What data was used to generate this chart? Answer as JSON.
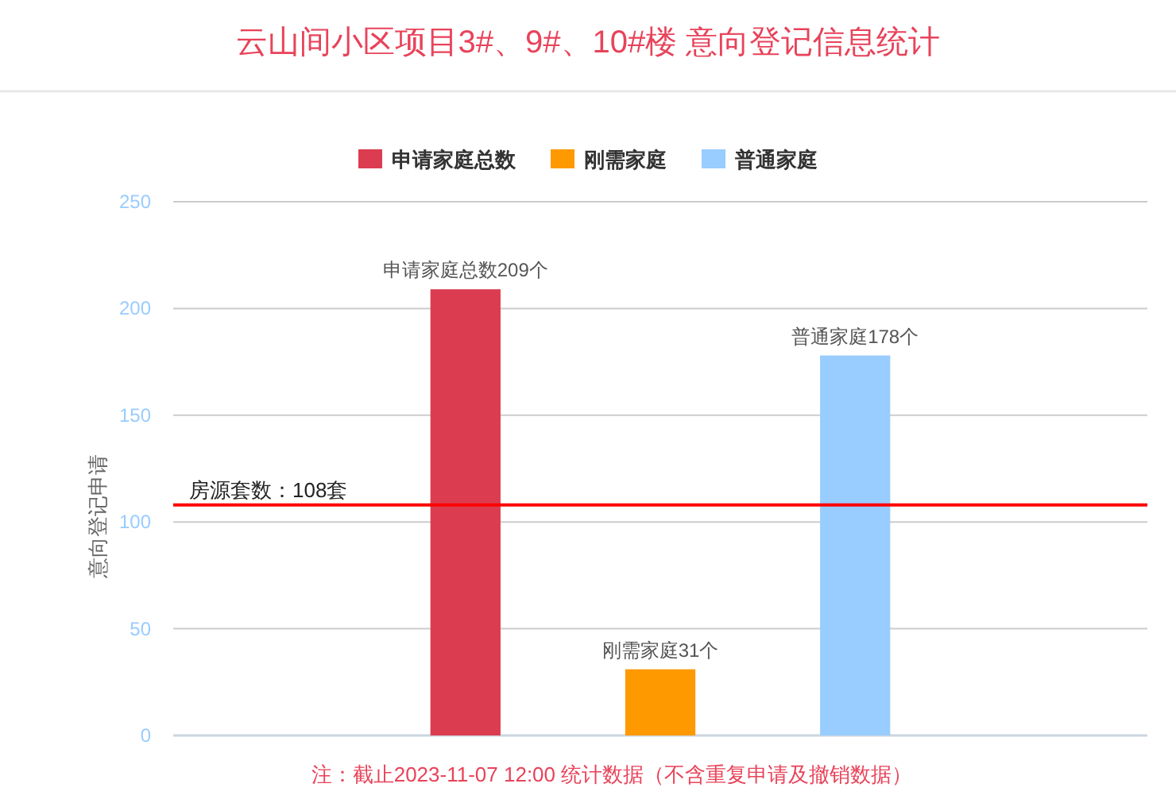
{
  "chart_data": {
    "type": "bar",
    "title": "云山间小区项目3#、9#、10#楼 意向登记信息统计",
    "ylabel": "意向登记申请",
    "categories": [
      null
    ],
    "series": [
      {
        "name": "申请家庭总数",
        "color": "#dc3c50",
        "values": [
          209
        ],
        "value_labels": [
          "申请家庭总数209个"
        ]
      },
      {
        "name": "刚需家庭",
        "color": "#ff9900",
        "values": [
          31
        ],
        "value_labels": [
          "刚需家庭31个"
        ]
      },
      {
        "name": "普通家庭",
        "color": "#99ccff",
        "values": [
          178
        ],
        "value_labels": [
          "普通家庭178个"
        ]
      }
    ],
    "ylim": [
      0,
      250
    ],
    "yticks": [
      0,
      50,
      100,
      150,
      200,
      250
    ],
    "grid": "y",
    "legend": "top",
    "tick_labels": "y",
    "ref_lines": [
      {
        "axis": "y",
        "value": 108,
        "label": "房源套数：108套",
        "color": "#ff0000"
      }
    ],
    "annotations": [
      "注：截止2023-11-07 12:00 统计数据（不含重复申请及撤销数据）"
    ]
  }
}
